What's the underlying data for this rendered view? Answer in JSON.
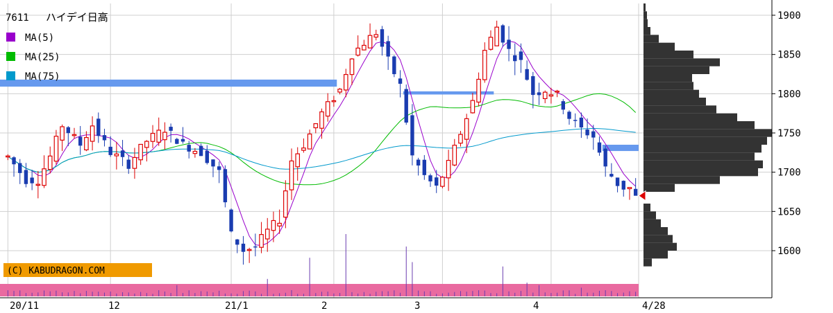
{
  "chart_data": {
    "type": "candlestick",
    "ticker_code": "7611",
    "title": "ハイデイ日高",
    "legend": [
      {
        "label": "MA(5)",
        "color": "#9900cc"
      },
      {
        "label": "MA(25)",
        "color": "#00bb00"
      },
      {
        "label": "MA(75)",
        "color": "#0099cc"
      }
    ],
    "copyright": "(C) KABUDRAGON.COM",
    "x_tick_labels": [
      "20/11",
      "12",
      "21/1",
      "2",
      "3",
      "4",
      "4/28"
    ],
    "y_ticks": [
      1600,
      1650,
      1700,
      1750,
      1800,
      1850,
      1900
    ],
    "ylim": [
      1540,
      1915
    ],
    "grid": true,
    "colors": {
      "up": "#dd0000",
      "down": "#1a3cb0",
      "volume": "#6a3cb0",
      "volume_band": "#e96aa0",
      "profile": "#333333",
      "resistance": "#6699ee",
      "current_marker": "#dd0000"
    },
    "current_price": 1670,
    "n_sessions": 105,
    "closes_anchor": [
      [
        0,
        1720
      ],
      [
        3,
        1690
      ],
      [
        5,
        1690
      ],
      [
        7,
        1720
      ],
      [
        9,
        1760
      ],
      [
        12,
        1735
      ],
      [
        14,
        1760
      ],
      [
        17,
        1725
      ],
      [
        20,
        1710
      ],
      [
        23,
        1740
      ],
      [
        26,
        1755
      ],
      [
        29,
        1735
      ],
      [
        32,
        1725
      ],
      [
        35,
        1700
      ],
      [
        37,
        1620
      ],
      [
        39,
        1600
      ],
      [
        41,
        1605
      ],
      [
        43,
        1625
      ],
      [
        45,
        1640
      ],
      [
        47,
        1715
      ],
      [
        49,
        1735
      ],
      [
        52,
        1775
      ],
      [
        55,
        1805
      ],
      [
        57,
        1850
      ],
      [
        59,
        1865
      ],
      [
        61,
        1878
      ],
      [
        63,
        1842
      ],
      [
        65,
        1810
      ],
      [
        67,
        1720
      ],
      [
        69,
        1695
      ],
      [
        71,
        1680
      ],
      [
        73,
        1710
      ],
      [
        75,
        1750
      ],
      [
        77,
        1790
      ],
      [
        79,
        1855
      ],
      [
        81,
        1885
      ],
      [
        83,
        1855
      ],
      [
        85,
        1840
      ],
      [
        87,
        1800
      ],
      [
        89,
        1805
      ],
      [
        91,
        1798
      ],
      [
        93,
        1770
      ],
      [
        95,
        1755
      ],
      [
        97,
        1745
      ],
      [
        99,
        1705
      ],
      [
        101,
        1685
      ],
      [
        102,
        1680
      ],
      [
        103,
        1680
      ],
      [
        104,
        1670
      ]
    ],
    "volume_spikes": [
      [
        43,
        0.28
      ],
      [
        50,
        0.62
      ],
      [
        56,
        1.0
      ],
      [
        66,
        0.8
      ],
      [
        67,
        0.55
      ],
      [
        82,
        0.48
      ],
      [
        86,
        0.22
      ],
      [
        88,
        0.18
      ],
      [
        28,
        0.18
      ],
      [
        95,
        0.14
      ]
    ],
    "resistance_bands": [
      {
        "from": 1809,
        "to": 1818,
        "start_session": -2,
        "end_session": 54
      },
      {
        "from": 1799,
        "to": 1803,
        "start_session": 66,
        "end_session": 80
      },
      {
        "from": 1727,
        "to": 1735,
        "start_session": 99,
        "end_session": 104
      }
    ],
    "volume_profile": [
      [
        1585,
        12
      ],
      [
        1595,
        35
      ],
      [
        1605,
        48
      ],
      [
        1615,
        42
      ],
      [
        1625,
        35
      ],
      [
        1635,
        25
      ],
      [
        1645,
        18
      ],
      [
        1655,
        10
      ],
      [
        1680,
        45
      ],
      [
        1690,
        110
      ],
      [
        1700,
        165
      ],
      [
        1710,
        172
      ],
      [
        1720,
        160
      ],
      [
        1730,
        170
      ],
      [
        1740,
        178
      ],
      [
        1750,
        185
      ],
      [
        1760,
        160
      ],
      [
        1770,
        135
      ],
      [
        1780,
        105
      ],
      [
        1790,
        90
      ],
      [
        1800,
        80
      ],
      [
        1810,
        72
      ],
      [
        1820,
        70
      ],
      [
        1830,
        95
      ],
      [
        1840,
        110
      ],
      [
        1850,
        72
      ],
      [
        1860,
        45
      ],
      [
        1870,
        22
      ],
      [
        1880,
        10
      ],
      [
        1890,
        6
      ],
      [
        1900,
        5
      ],
      [
        1910,
        3
      ]
    ]
  }
}
